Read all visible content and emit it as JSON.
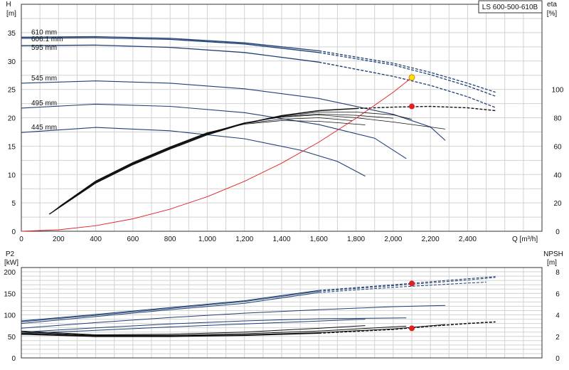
{
  "model": "LS 600-500-610B",
  "chart_data": [
    {
      "type": "line",
      "name": "top-panel",
      "xlabel": "Q [m³/h]",
      "ylabel_left": [
        "H",
        "[m]"
      ],
      "ylabel_right": [
        "eta",
        "[%]"
      ],
      "x_ticks": [
        "0",
        "200",
        "400",
        "600",
        "800",
        "1,000",
        "1,200",
        "1,400",
        "1,600",
        "1,800",
        "2,000",
        "2,200",
        "2,400"
      ],
      "xlim": [
        0,
        2800
      ],
      "y_left_ticks": [
        "0",
        "5",
        "10",
        "15",
        "20",
        "25",
        "30",
        "35"
      ],
      "ylim_left": [
        0,
        40
      ],
      "y_right_ticks": [
        "0",
        "20",
        "40",
        "60",
        "80",
        "100"
      ],
      "ylim_right": [
        0,
        160
      ],
      "grid": true,
      "head_curves": [
        {
          "name": "610 mm",
          "points": [
            [
              0,
              34.2
            ],
            [
              400,
              34.3
            ],
            [
              800,
              34.0
            ],
            [
              1200,
              33.2
            ],
            [
              1600,
              31.8
            ],
            [
              2000,
              29.6
            ],
            [
              2200,
              28.0
            ],
            [
              2400,
              26.1
            ],
            [
              2550,
              24.5
            ]
          ]
        },
        {
          "name": "606.1 mm",
          "points": [
            [
              0,
              34.0
            ],
            [
              400,
              34.1
            ],
            [
              800,
              33.8
            ],
            [
              1200,
              33.0
            ],
            [
              1600,
              31.5
            ],
            [
              2000,
              29.3
            ],
            [
              2200,
              27.6
            ],
            [
              2400,
              25.6
            ],
            [
              2550,
              23.8
            ]
          ]
        },
        {
          "name": "595 mm",
          "points": [
            [
              0,
              32.7
            ],
            [
              400,
              32.8
            ],
            [
              800,
              32.4
            ],
            [
              1200,
              31.5
            ],
            [
              1600,
              29.8
            ],
            [
              2000,
              27.3
            ],
            [
              2200,
              25.7
            ],
            [
              2400,
              23.7
            ],
            [
              2550,
              21.8
            ]
          ]
        },
        {
          "name": "545 mm",
          "points": [
            [
              0,
              26.1
            ],
            [
              400,
              26.5
            ],
            [
              800,
              26.1
            ],
            [
              1200,
              25.1
            ],
            [
              1600,
              23.4
            ],
            [
              2000,
              20.6
            ],
            [
              2200,
              18.4
            ],
            [
              2280,
              16.0
            ]
          ]
        },
        {
          "name": "495 mm",
          "points": [
            [
              0,
              21.7
            ],
            [
              400,
              22.4
            ],
            [
              800,
              22.0
            ],
            [
              1200,
              20.9
            ],
            [
              1600,
              18.8
            ],
            [
              1900,
              16.4
            ],
            [
              2070,
              12.8
            ]
          ]
        },
        {
          "name": "445 mm",
          "points": [
            [
              0,
              17.4
            ],
            [
              400,
              18.3
            ],
            [
              800,
              17.7
            ],
            [
              1200,
              16.3
            ],
            [
              1500,
              14.3
            ],
            [
              1700,
              12.3
            ],
            [
              1850,
              9.7
            ]
          ]
        }
      ],
      "efficiency_curves": [
        {
          "points": [
            [
              150,
              12
            ],
            [
              400,
              34
            ],
            [
              600,
              47
            ],
            [
              800,
              58
            ],
            [
              1000,
              68
            ],
            [
              1200,
              76
            ],
            [
              1400,
              81.5
            ],
            [
              1600,
              85
            ],
            [
              1800,
              86.5
            ],
            [
              2000,
              87.5
            ],
            [
              2200,
              88
            ],
            [
              2400,
              87
            ],
            [
              2550,
              85
            ]
          ]
        },
        {
          "points": [
            [
              170,
              14
            ],
            [
              400,
              34.5
            ],
            [
              600,
              47.5
            ],
            [
              800,
              58.5
            ],
            [
              1000,
              68.5
            ],
            [
              1200,
              76
            ],
            [
              1400,
              81
            ],
            [
              1600,
              84
            ],
            [
              1800,
              84
            ],
            [
              2000,
              82
            ],
            [
              2100,
              79
            ]
          ]
        },
        {
          "points": [
            [
              190,
              16
            ],
            [
              400,
              35
            ],
            [
              600,
              48
            ],
            [
              800,
              59
            ],
            [
              1000,
              69
            ],
            [
              1200,
              76.5
            ],
            [
              1400,
              80.5
            ],
            [
              1600,
              82
            ],
            [
              1800,
              80
            ],
            [
              2000,
              77
            ],
            [
              2280,
              72
            ]
          ]
        },
        {
          "points": [
            [
              180,
              15
            ],
            [
              400,
              34.7
            ],
            [
              600,
              47.8
            ],
            [
              800,
              58.7
            ],
            [
              1000,
              68.7
            ],
            [
              1200,
              76.2
            ],
            [
              1400,
              80.7
            ],
            [
              1600,
              82.7
            ],
            [
              1800,
              81.7
            ],
            [
              2000,
              79.7
            ]
          ]
        },
        {
          "points": [
            [
              200,
              17
            ],
            [
              400,
              35.2
            ],
            [
              600,
              48.2
            ],
            [
              800,
              59.2
            ],
            [
              1000,
              69.2
            ],
            [
              1200,
              76
            ],
            [
              1400,
              79
            ],
            [
              1600,
              80
            ],
            [
              1780,
              78
            ]
          ]
        },
        {
          "points": [
            [
              210,
              18
            ],
            [
              400,
              35.5
            ],
            [
              600,
              48.5
            ],
            [
              800,
              59.5
            ],
            [
              1000,
              69.5
            ],
            [
              1200,
              75.5
            ],
            [
              1400,
              78
            ],
            [
              1600,
              77.5
            ],
            [
              1850,
              75
            ]
          ]
        }
      ],
      "system_curve": {
        "points": [
          [
            0,
            0
          ],
          [
            200,
            0.25
          ],
          [
            400,
            0.98
          ],
          [
            600,
            2.2
          ],
          [
            800,
            3.9
          ],
          [
            1000,
            6.1
          ],
          [
            1200,
            8.8
          ],
          [
            1400,
            12.0
          ],
          [
            1600,
            15.7
          ],
          [
            1800,
            19.9
          ],
          [
            2000,
            24.5
          ],
          [
            2100,
            27.1
          ]
        ]
      },
      "markers": [
        {
          "kind": "duty-point",
          "x": 2100,
          "y": 27.1,
          "axis": "left"
        },
        {
          "kind": "efficiency-point",
          "x": 2100,
          "y": 88,
          "axis": "right"
        }
      ]
    },
    {
      "type": "line",
      "name": "bottom-panel",
      "ylabel_left": [
        "P2",
        "[kW]"
      ],
      "ylabel_right": [
        "NPSH",
        "[m]"
      ],
      "xlim": [
        0,
        2800
      ],
      "y_left_ticks": [
        "0",
        "50",
        "100",
        "150",
        "200"
      ],
      "ylim_left": [
        0,
        210
      ],
      "y_right_ticks": [
        "0",
        "2",
        "4",
        "6",
        "8"
      ],
      "ylim_right": [
        0,
        8.4
      ],
      "grid": true,
      "power_curves": [
        {
          "points": [
            [
              0,
              86
            ],
            [
              400,
              101
            ],
            [
              800,
              117
            ],
            [
              1200,
              133
            ],
            [
              1600,
              157
            ],
            [
              2000,
              170
            ],
            [
              2400,
              184
            ],
            [
              2550,
              189
            ]
          ]
        },
        {
          "points": [
            [
              0,
              84
            ],
            [
              400,
              99
            ],
            [
              800,
              115
            ],
            [
              1200,
              131
            ],
            [
              1600,
              155
            ],
            [
              2000,
              168
            ],
            [
              2400,
              181
            ],
            [
              2550,
              187
            ]
          ]
        },
        {
          "points": [
            [
              0,
              80
            ],
            [
              400,
              96
            ],
            [
              800,
              112
            ],
            [
              1200,
              127
            ],
            [
              1600,
              152
            ],
            [
              2000,
              164
            ],
            [
              2400,
              174
            ],
            [
              2500,
              176
            ]
          ]
        },
        {
          "points": [
            [
              0,
              69
            ],
            [
              400,
              82
            ],
            [
              800,
              94
            ],
            [
              1200,
              104
            ],
            [
              1600,
              112
            ],
            [
              2000,
              119
            ],
            [
              2280,
              122
            ]
          ]
        },
        {
          "points": [
            [
              0,
              60
            ],
            [
              400,
              70
            ],
            [
              800,
              79
            ],
            [
              1200,
              86
            ],
            [
              1600,
              91
            ],
            [
              2070,
              93
            ]
          ]
        },
        {
          "points": [
            [
              0,
              57
            ],
            [
              400,
              64
            ],
            [
              800,
              72
            ],
            [
              1200,
              79
            ],
            [
              1500,
              84
            ],
            [
              1850,
              90
            ]
          ]
        }
      ],
      "npsh_curves": [
        {
          "points": [
            [
              0,
              2.2
            ],
            [
              400,
              2.0
            ],
            [
              800,
              2.0
            ],
            [
              1200,
              2.1
            ],
            [
              1600,
              2.3
            ],
            [
              2000,
              2.65
            ],
            [
              2200,
              2.95
            ],
            [
              2400,
              3.2
            ],
            [
              2550,
              3.35
            ]
          ]
        },
        {
          "points": [
            [
              0,
              2.3
            ],
            [
              400,
              2.05
            ],
            [
              800,
              2.05
            ],
            [
              1200,
              2.15
            ],
            [
              1600,
              2.35
            ],
            [
              2000,
              2.7
            ],
            [
              2280,
              3.1
            ]
          ]
        },
        {
          "points": [
            [
              0,
              2.4
            ],
            [
              400,
              2.1
            ],
            [
              800,
              2.1
            ],
            [
              1200,
              2.25
            ],
            [
              1600,
              2.5
            ],
            [
              2070,
              2.95
            ]
          ]
        },
        {
          "points": [
            [
              0,
              2.5
            ],
            [
              400,
              2.15
            ],
            [
              800,
              2.2
            ],
            [
              1200,
              2.4
            ],
            [
              1600,
              2.75
            ],
            [
              1850,
              3.0
            ]
          ]
        }
      ],
      "markers": [
        {
          "kind": "power-point",
          "x": 2100,
          "y": 173,
          "axis": "left"
        },
        {
          "kind": "npsh-point",
          "x": 2100,
          "y": 2.75,
          "axis": "right"
        }
      ]
    }
  ],
  "colors": {
    "head_curve": "#1f3f73",
    "efficiency_curve": "#111111",
    "system_curve": "#e02020",
    "grid": "#d2d2d2",
    "duty_point_fill": "#ffe000",
    "duty_point_stroke": "#cc8800",
    "marker_red": "#e02020"
  }
}
